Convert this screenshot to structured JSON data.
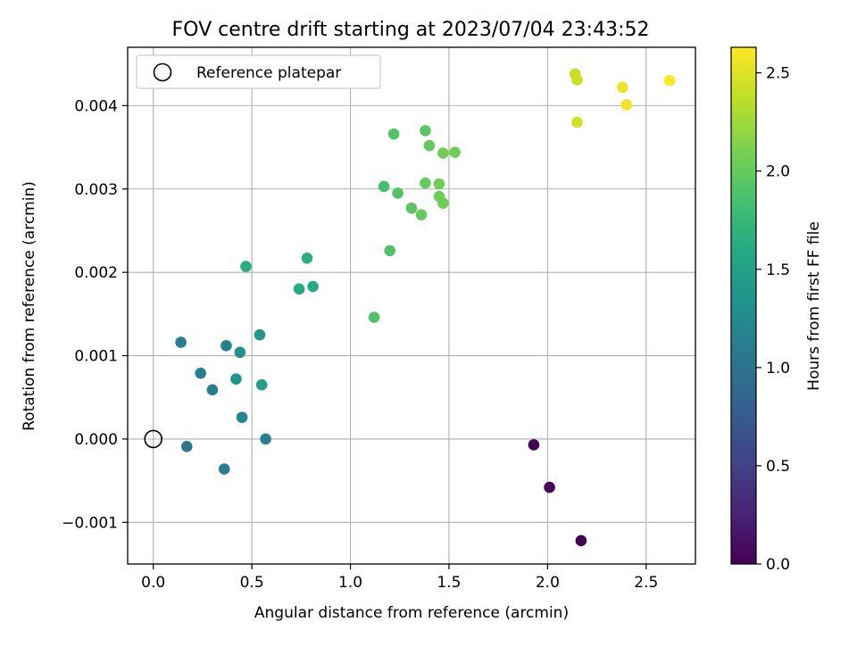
{
  "chart_data": {
    "type": "scatter",
    "title": "FOV centre drift starting at 2023/07/04 23:43:52",
    "xlabel": "Angular distance from reference (arcmin)",
    "ylabel": "Rotation from reference (arcmin)",
    "xlim": [
      -0.13,
      2.75
    ],
    "ylim": [
      -0.0015,
      0.0047
    ],
    "x_ticks": [
      0.0,
      0.5,
      1.0,
      1.5,
      2.0,
      2.5
    ],
    "x_tick_labels": [
      "0.0",
      "0.5",
      "1.0",
      "1.5",
      "2.0",
      "2.5"
    ],
    "y_ticks": [
      -0.001,
      0.0,
      0.001,
      0.002,
      0.003,
      0.004
    ],
    "y_tick_labels": [
      "−0.001",
      "0.000",
      "0.001",
      "0.002",
      "0.003",
      "0.004"
    ],
    "grid": true,
    "legend": {
      "placement": "top-left",
      "entries": [
        {
          "label": "Reference platepar",
          "marker": "open-circle"
        }
      ]
    },
    "reference_point": {
      "x": 0.0,
      "y": 0.0
    },
    "colorbar": {
      "label": "Hours from first FF file",
      "colormap": "viridis",
      "range": [
        0.0,
        2.63
      ],
      "ticks": [
        0.0,
        0.5,
        1.0,
        1.5,
        2.0,
        2.5
      ],
      "tick_labels": [
        "0.0",
        "0.5",
        "1.0",
        "1.5",
        "2.0",
        "2.5"
      ]
    },
    "points": [
      {
        "x": 1.93,
        "y": -7e-05,
        "hours": 0.0
      },
      {
        "x": 2.01,
        "y": -0.00058,
        "hours": 0.03
      },
      {
        "x": 2.17,
        "y": -0.00122,
        "hours": 0.0
      },
      {
        "x": 0.17,
        "y": -9e-05,
        "hours": 1.05
      },
      {
        "x": 0.36,
        "y": -0.00036,
        "hours": 1.1
      },
      {
        "x": 0.57,
        "y": 0.0,
        "hours": 1.15
      },
      {
        "x": 0.45,
        "y": 0.00026,
        "hours": 1.2
      },
      {
        "x": 0.3,
        "y": 0.00059,
        "hours": 1.1
      },
      {
        "x": 0.24,
        "y": 0.00079,
        "hours": 1.15
      },
      {
        "x": 0.42,
        "y": 0.00072,
        "hours": 1.35
      },
      {
        "x": 0.55,
        "y": 0.00065,
        "hours": 1.5
      },
      {
        "x": 0.14,
        "y": 0.00116,
        "hours": 1.1
      },
      {
        "x": 0.37,
        "y": 0.00112,
        "hours": 1.15
      },
      {
        "x": 0.44,
        "y": 0.00104,
        "hours": 1.3
      },
      {
        "x": 0.54,
        "y": 0.00125,
        "hours": 1.4
      },
      {
        "x": 0.47,
        "y": 0.00207,
        "hours": 1.65
      },
      {
        "x": 0.74,
        "y": 0.0018,
        "hours": 1.6
      },
      {
        "x": 0.81,
        "y": 0.00183,
        "hours": 1.6
      },
      {
        "x": 0.78,
        "y": 0.00217,
        "hours": 1.65
      },
      {
        "x": 1.12,
        "y": 0.00146,
        "hours": 1.9
      },
      {
        "x": 1.2,
        "y": 0.00226,
        "hours": 1.9
      },
      {
        "x": 1.17,
        "y": 0.00303,
        "hours": 1.85
      },
      {
        "x": 1.24,
        "y": 0.00295,
        "hours": 1.9
      },
      {
        "x": 1.31,
        "y": 0.00277,
        "hours": 1.95
      },
      {
        "x": 1.36,
        "y": 0.00269,
        "hours": 2.0
      },
      {
        "x": 1.38,
        "y": 0.00307,
        "hours": 2.0
      },
      {
        "x": 1.45,
        "y": 0.00306,
        "hours": 2.05
      },
      {
        "x": 1.45,
        "y": 0.00291,
        "hours": 2.05
      },
      {
        "x": 1.47,
        "y": 0.00283,
        "hours": 2.05
      },
      {
        "x": 1.22,
        "y": 0.00366,
        "hours": 1.9
      },
      {
        "x": 1.38,
        "y": 0.0037,
        "hours": 1.95
      },
      {
        "x": 1.4,
        "y": 0.00352,
        "hours": 2.0
      },
      {
        "x": 1.47,
        "y": 0.00343,
        "hours": 2.05
      },
      {
        "x": 1.53,
        "y": 0.00344,
        "hours": 2.05
      },
      {
        "x": 2.14,
        "y": 0.00438,
        "hours": 2.4
      },
      {
        "x": 2.15,
        "y": 0.00431,
        "hours": 2.42
      },
      {
        "x": 2.15,
        "y": 0.0038,
        "hours": 2.45
      },
      {
        "x": 2.38,
        "y": 0.00422,
        "hours": 2.55
      },
      {
        "x": 2.4,
        "y": 0.00401,
        "hours": 2.58
      },
      {
        "x": 2.62,
        "y": 0.0043,
        "hours": 2.62
      }
    ]
  }
}
